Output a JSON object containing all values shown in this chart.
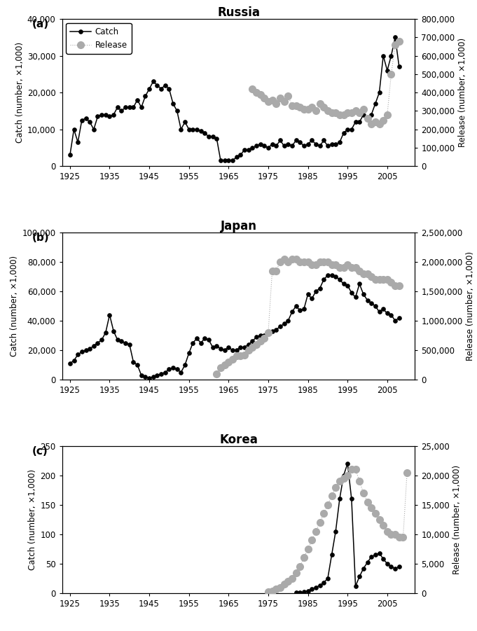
{
  "russia_catch_years": [
    1925,
    1926,
    1927,
    1928,
    1929,
    1930,
    1931,
    1932,
    1933,
    1934,
    1935,
    1936,
    1937,
    1938,
    1939,
    1940,
    1941,
    1942,
    1943,
    1944,
    1945,
    1946,
    1947,
    1948,
    1949,
    1950,
    1951,
    1952,
    1953,
    1954,
    1955,
    1956,
    1957,
    1958,
    1959,
    1960,
    1961,
    1962,
    1963,
    1964,
    1965,
    1966,
    1967,
    1968,
    1969,
    1970,
    1971,
    1972,
    1973,
    1974,
    1975,
    1976,
    1977,
    1978,
    1979,
    1980,
    1981,
    1982,
    1983,
    1984,
    1985,
    1986,
    1987,
    1988,
    1989,
    1990,
    1991,
    1992,
    1993,
    1994,
    1995,
    1996,
    1997,
    1998,
    1999,
    2000,
    2001,
    2002,
    2003,
    2004,
    2005,
    2006,
    2007,
    2008
  ],
  "russia_catch": [
    3000,
    10000,
    6500,
    12500,
    13000,
    12000,
    10000,
    13500,
    14000,
    14000,
    13500,
    14000,
    16000,
    15000,
    16000,
    16000,
    16000,
    18000,
    16000,
    19000,
    21000,
    23000,
    22000,
    21000,
    22000,
    21000,
    17000,
    15000,
    10000,
    12000,
    10000,
    10000,
    10000,
    9500,
    9000,
    8000,
    8000,
    7500,
    1500,
    1500,
    1500,
    1500,
    2500,
    3000,
    4500,
    4500,
    5000,
    5500,
    6000,
    5500,
    5000,
    6000,
    5500,
    7000,
    5500,
    6000,
    5500,
    7000,
    6500,
    5500,
    6000,
    7000,
    6000,
    5500,
    7000,
    5500,
    6000,
    6000,
    6500,
    9000,
    10000,
    10000,
    12000,
    12000,
    14000,
    13000,
    14000,
    17000,
    20000,
    30000,
    26000,
    30000,
    35000,
    27000
  ],
  "russia_release_years": [
    1971,
    1972,
    1973,
    1974,
    1975,
    1976,
    1977,
    1978,
    1979,
    1980,
    1981,
    1982,
    1983,
    1984,
    1985,
    1986,
    1987,
    1988,
    1989,
    1990,
    1991,
    1992,
    1993,
    1994,
    1995,
    1996,
    1997,
    1998,
    1999,
    2000,
    2001,
    2002,
    2003,
    2004,
    2005,
    2006,
    2007,
    2008
  ],
  "russia_release": [
    420000,
    400000,
    390000,
    370000,
    350000,
    360000,
    340000,
    370000,
    350000,
    380000,
    330000,
    330000,
    320000,
    310000,
    310000,
    320000,
    300000,
    340000,
    320000,
    300000,
    290000,
    290000,
    280000,
    280000,
    290000,
    290000,
    300000,
    290000,
    310000,
    260000,
    230000,
    240000,
    230000,
    250000,
    280000,
    500000,
    660000,
    680000
  ],
  "japan_catch_years": [
    1925,
    1926,
    1927,
    1928,
    1929,
    1930,
    1931,
    1932,
    1933,
    1934,
    1935,
    1936,
    1937,
    1938,
    1939,
    1940,
    1941,
    1942,
    1943,
    1944,
    1945,
    1946,
    1947,
    1948,
    1949,
    1950,
    1951,
    1952,
    1953,
    1954,
    1955,
    1956,
    1957,
    1958,
    1959,
    1960,
    1961,
    1962,
    1963,
    1964,
    1965,
    1966,
    1967,
    1968,
    1969,
    1970,
    1971,
    1972,
    1973,
    1974,
    1975,
    1976,
    1977,
    1978,
    1979,
    1980,
    1981,
    1982,
    1983,
    1984,
    1985,
    1986,
    1987,
    1988,
    1989,
    1990,
    1991,
    1992,
    1993,
    1994,
    1995,
    1996,
    1997,
    1998,
    1999,
    2000,
    2001,
    2002,
    2003,
    2004,
    2005,
    2006,
    2007,
    2008
  ],
  "japan_catch": [
    11000,
    13000,
    17000,
    19000,
    20000,
    21000,
    23000,
    25000,
    27000,
    32000,
    44000,
    33000,
    27000,
    26000,
    25000,
    24000,
    12000,
    10000,
    3000,
    2000,
    1000,
    2000,
    3000,
    4000,
    5000,
    7000,
    8000,
    7000,
    5000,
    10000,
    18000,
    25000,
    28000,
    25000,
    28000,
    27000,
    22000,
    23000,
    21000,
    20000,
    22000,
    20000,
    20000,
    22000,
    22000,
    24000,
    26000,
    29000,
    30000,
    30000,
    32000,
    33000,
    34000,
    36000,
    38000,
    40000,
    46000,
    50000,
    47000,
    48000,
    58000,
    55000,
    60000,
    62000,
    68000,
    71000,
    71000,
    70000,
    68000,
    65000,
    64000,
    59000,
    56000,
    65000,
    58000,
    54000,
    52000,
    50000,
    46000,
    48000,
    45000,
    44000,
    40000,
    42000
  ],
  "japan_release_years": [
    1962,
    1963,
    1964,
    1965,
    1966,
    1967,
    1968,
    1969,
    1970,
    1971,
    1972,
    1973,
    1974,
    1975,
    1976,
    1977,
    1978,
    1979,
    1980,
    1981,
    1982,
    1983,
    1984,
    1985,
    1986,
    1987,
    1988,
    1989,
    1990,
    1991,
    1992,
    1993,
    1994,
    1995,
    1996,
    1997,
    1998,
    1999,
    2000,
    2001,
    2002,
    2003,
    2004,
    2005,
    2006,
    2007,
    2008
  ],
  "japan_release": [
    100000,
    200000,
    250000,
    300000,
    350000,
    400000,
    400000,
    420000,
    500000,
    550000,
    600000,
    650000,
    700000,
    800000,
    1850000,
    1850000,
    2000000,
    2050000,
    2000000,
    2050000,
    2050000,
    2000000,
    2000000,
    2000000,
    1950000,
    1950000,
    2000000,
    2000000,
    2000000,
    1950000,
    1950000,
    1900000,
    1900000,
    1950000,
    1900000,
    1900000,
    1850000,
    1800000,
    1800000,
    1750000,
    1700000,
    1700000,
    1700000,
    1700000,
    1650000,
    1600000,
    1600000
  ],
  "korea_catch_years": [
    1982,
    1983,
    1984,
    1985,
    1986,
    1987,
    1988,
    1989,
    1990,
    1991,
    1992,
    1993,
    1994,
    1995,
    1996,
    1997,
    1998,
    1999,
    2000,
    2001,
    2002,
    2003,
    2004,
    2005,
    2006,
    2007,
    2008
  ],
  "korea_catch": [
    1,
    1,
    2,
    4,
    7,
    10,
    13,
    18,
    25,
    65,
    105,
    160,
    200,
    220,
    160,
    12,
    28,
    42,
    52,
    62,
    65,
    68,
    58,
    50,
    45,
    42,
    45
  ],
  "korea_release_years": [
    1975,
    1976,
    1977,
    1978,
    1979,
    1980,
    1981,
    1982,
    1983,
    1984,
    1985,
    1986,
    1987,
    1988,
    1989,
    1990,
    1991,
    1992,
    1993,
    1994,
    1995,
    1996,
    1997,
    1998,
    1999,
    2000,
    2001,
    2002,
    2003,
    2004,
    2005,
    2006,
    2007,
    2008,
    2009,
    2010
  ],
  "korea_release": [
    200,
    400,
    700,
    1000,
    1500,
    2000,
    2500,
    3500,
    4500,
    6000,
    7500,
    9000,
    10500,
    12000,
    13500,
    15000,
    16500,
    18000,
    19000,
    19500,
    20000,
    21000,
    21000,
    19000,
    17000,
    15500,
    14500,
    13500,
    12500,
    11500,
    10500,
    10000,
    10000,
    9500,
    9500,
    20500
  ],
  "catch_color": "#000000",
  "release_color": "#aaaaaa",
  "background_color": "#ffffff",
  "russia_ylim_catch": [
    0,
    40000
  ],
  "russia_ylim_release": [
    0,
    800000
  ],
  "russia_yticks_catch": [
    0,
    10000,
    20000,
    30000,
    40000
  ],
  "russia_yticks_release": [
    0,
    100000,
    200000,
    300000,
    400000,
    500000,
    600000,
    700000,
    800000
  ],
  "japan_ylim_catch": [
    0,
    100000
  ],
  "japan_ylim_release": [
    0,
    2500000
  ],
  "japan_yticks_catch": [
    0,
    20000,
    40000,
    60000,
    80000,
    100000
  ],
  "japan_yticks_release": [
    0,
    500000,
    1000000,
    1500000,
    2000000,
    2500000
  ],
  "korea_ylim_catch": [
    0,
    250
  ],
  "korea_ylim_release": [
    0,
    25000
  ],
  "korea_yticks_catch": [
    0,
    50,
    100,
    150,
    200,
    250
  ],
  "korea_yticks_release": [
    0,
    5000,
    10000,
    15000,
    20000,
    25000
  ],
  "xlim": [
    1923,
    2012
  ],
  "xticks": [
    1925,
    1935,
    1945,
    1955,
    1965,
    1975,
    1985,
    1995,
    2005
  ],
  "russia_title": "Russia",
  "japan_title": "Japan",
  "korea_title": "Korea",
  "ylabel_catch": "Catch (number, ×1,000)",
  "ylabel_release": "Release (number, ×1,000)"
}
